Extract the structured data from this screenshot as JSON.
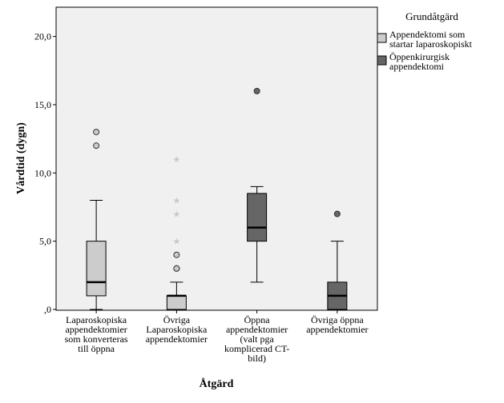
{
  "chart_data": {
    "type": "boxplot",
    "xlabel": "Åtgärd",
    "ylabel": "Vårdtid (dygn)",
    "ylim": [
      0,
      22.5
    ],
    "yticks": [
      0,
      5,
      10,
      15,
      20
    ],
    "ytick_labels": [
      ",0",
      "5,0",
      "10,0",
      "15,0",
      "20,0"
    ],
    "grid": false,
    "legend": {
      "title": "Grundåtgärd",
      "placement": "right",
      "entries": [
        {
          "lines": [
            "Appendektomi som",
            "startar laparoskopiskt"
          ],
          "color": "#cccccc"
        },
        {
          "lines": [
            "Öppenkirurgisk",
            "appendektomi"
          ],
          "color": "#666666"
        }
      ]
    },
    "categories": [
      {
        "lines": [
          "Laparoskopiska",
          "appendektomier",
          "som konverteras",
          "till öppna"
        ]
      },
      {
        "lines": [
          "Övriga",
          "Laparoskopiska",
          "appendektomier"
        ]
      },
      {
        "lines": [
          "Öppna",
          "appendektomier",
          "(valt pga",
          "komplicerad CT-",
          "bild)"
        ]
      },
      {
        "lines": [
          "Övriga öppna",
          "appendektomier"
        ]
      }
    ],
    "series": [
      {
        "category_index": 0,
        "group": 0,
        "min": 0,
        "q1": 1,
        "median": 2,
        "q3": 5,
        "max": 8,
        "outliers": [
          12,
          13
        ],
        "extremes": []
      },
      {
        "category_index": 1,
        "group": 0,
        "min": 0,
        "q1": 0,
        "median": 1,
        "q3": 1,
        "max": 2,
        "outliers": [
          3,
          3,
          4
        ],
        "extremes": [
          5,
          7,
          8,
          11
        ]
      },
      {
        "category_index": 2,
        "group": 1,
        "min": 2,
        "q1": 5,
        "median": 6,
        "q3": 8.5,
        "max": 9,
        "outliers": [
          16
        ],
        "extremes": []
      },
      {
        "category_index": 3,
        "group": 1,
        "min": 0,
        "q1": 0,
        "median": 1,
        "q3": 2,
        "max": 5,
        "outliers": [
          7
        ],
        "extremes": []
      }
    ]
  }
}
